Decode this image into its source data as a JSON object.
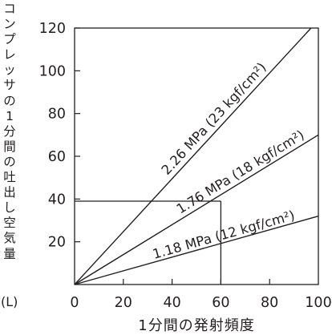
{
  "chart_data": {
    "type": "line",
    "title": "",
    "xlabel": "1分間の発射頻度",
    "ylabel": "コンプレッサの1分間の吐出し空気量",
    "yunit": "(L)",
    "xlim": [
      0,
      100
    ],
    "ylim": [
      0,
      120
    ],
    "xticks": [
      "0",
      "20",
      "40",
      "60",
      "80",
      "100"
    ],
    "yticks": [
      "20",
      "40",
      "60",
      "80",
      "100",
      "120"
    ],
    "series": [
      {
        "name": "2.26 MPa (23 kgf/cm²)",
        "x": [
          0,
          97
        ],
        "y": [
          0,
          120
        ]
      },
      {
        "name": "1.76 MPa (18 kgf/cm²)",
        "x": [
          0,
          100
        ],
        "y": [
          0,
          70
        ]
      },
      {
        "name": "1.18 MPa (12 kgf/cm²)",
        "x": [
          0,
          100
        ],
        "y": [
          0,
          32
        ]
      }
    ],
    "annotation": {
      "x": 60,
      "y": 39
    }
  }
}
